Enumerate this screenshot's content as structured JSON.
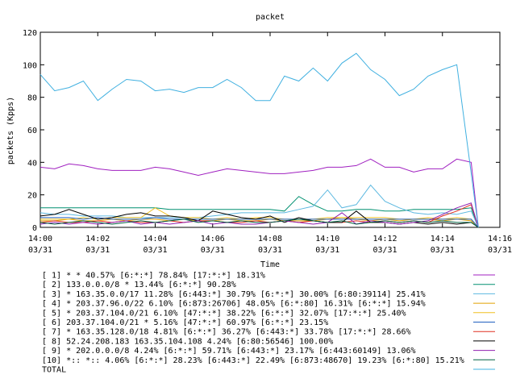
{
  "chart_data": {
    "type": "line",
    "title": "packet",
    "xlabel": "Time",
    "ylabel": "packets (Kpps)",
    "ylim": [
      0,
      120
    ],
    "yticks": [
      "0",
      "20",
      "40",
      "60",
      "80",
      "100",
      "120"
    ],
    "xlim": [
      "14:00",
      "14:16"
    ],
    "xticks": [
      {
        "time": "14:00",
        "date": "03/31"
      },
      {
        "time": "14:02",
        "date": "03/31"
      },
      {
        "time": "14:04",
        "date": "03/31"
      },
      {
        "time": "14:06",
        "date": "03/31"
      },
      {
        "time": "14:08",
        "date": "03/31"
      },
      {
        "time": "14:10",
        "date": "03/31"
      },
      {
        "time": "14:12",
        "date": "03/31"
      },
      {
        "time": "14:14",
        "date": "03/31"
      },
      {
        "time": "14:16",
        "date": "03/31"
      }
    ],
    "grid": false,
    "legend_position": "bottom",
    "x": [
      "14:00",
      "14:00:30",
      "14:01",
      "14:01:30",
      "14:02",
      "14:02:30",
      "14:03",
      "14:03:30",
      "14:04",
      "14:04:30",
      "14:05",
      "14:05:30",
      "14:06",
      "14:06:30",
      "14:07",
      "14:07:30",
      "14:08",
      "14:08:30",
      "14:09",
      "14:09:30",
      "14:10",
      "14:10:30",
      "14:11",
      "14:11:30",
      "14:12",
      "14:12:30",
      "14:13",
      "14:13:30",
      "14:14",
      "14:14:30",
      "14:15"
    ],
    "series": [
      {
        "name": "[ 1] * * 40.57%  [6:*:*] 78.84% [17:*:*] 18.31%",
        "color": "#a020c0",
        "values": [
          37,
          36,
          39,
          38,
          36,
          35,
          35,
          35,
          37,
          36,
          34,
          32,
          34,
          36,
          35,
          34,
          33,
          33,
          34,
          35,
          37,
          37,
          38,
          42,
          37,
          37,
          34,
          36,
          36,
          42,
          40
        ]
      },
      {
        "name": "[ 2] 133.0.0.0/8 * 13.44%  [6:*:*] 90.28%",
        "color": "#009070",
        "values": [
          12,
          12,
          12,
          12,
          12,
          12,
          12,
          12,
          12,
          11,
          11,
          11,
          11,
          11,
          11,
          11,
          11,
          10,
          19,
          14,
          10,
          10,
          11,
          11,
          10,
          10,
          11,
          11,
          11,
          11,
          12
        ]
      },
      {
        "name": "[ 3] * 163.35.0.0/17 11.28%  [6:443:*] 30.79% [6:*:*] 30.00% [6:80:39114] 25.41%",
        "color": "#5cb8e0",
        "values": [
          9,
          8,
          8,
          7,
          7,
          7,
          6,
          6,
          6,
          6,
          6,
          6,
          7,
          8,
          9,
          9,
          9,
          9,
          11,
          13,
          23,
          12,
          14,
          26,
          16,
          12,
          9,
          8,
          9,
          8,
          10
        ]
      },
      {
        "name": "[ 4] * 203.37.96.0/22 6.10%  [6:873:26706] 48.05% [6:*:80] 16.31% [6:*:*] 15.94%",
        "color": "#e0a000",
        "values": [
          4,
          4,
          5,
          4,
          4,
          5,
          4,
          5,
          5,
          4,
          5,
          4,
          4,
          5,
          4,
          4,
          5,
          4,
          4,
          4,
          5,
          6,
          5,
          4,
          5,
          4,
          5,
          5,
          4,
          5,
          4
        ]
      },
      {
        "name": "[ 5] * 203.37.104.0/21 6.10%  [47:*:*] 38.22% [6:*:*] 32.07% [17:*:*] 25.40%",
        "color": "#f0c020",
        "values": [
          5,
          5,
          5,
          6,
          5,
          6,
          6,
          6,
          12,
          7,
          6,
          6,
          5,
          6,
          5,
          6,
          6,
          5,
          5,
          5,
          6,
          6,
          6,
          6,
          6,
          5,
          5,
          6,
          5,
          6,
          5
        ]
      },
      {
        "name": "[ 6] 203.37.104.0/21 * 5.16%  [47:*:*] 60.97% [6:*:*] 23.15%",
        "color": "#2060c0",
        "values": [
          6,
          6,
          6,
          5,
          6,
          5,
          5,
          5,
          6,
          5,
          5,
          5,
          5,
          5,
          5,
          5,
          5,
          5,
          5,
          5,
          5,
          5,
          5,
          5,
          5,
          5,
          5,
          5,
          5,
          5,
          5
        ]
      },
      {
        "name": "[ 7] * 163.35.128.0/18 4.81%  [6:*:*] 36.27% [6:443:*] 33.78% [17:*:*] 28.66%",
        "color": "#e03020",
        "values": [
          3,
          4,
          3,
          3,
          4,
          3,
          4,
          3,
          3,
          4,
          3,
          4,
          4,
          3,
          3,
          4,
          3,
          4,
          3,
          4,
          3,
          3,
          4,
          3,
          4,
          3,
          4,
          3,
          7,
          10,
          14
        ]
      },
      {
        "name": "[ 8] 52.24.208.183 163.35.104.108 4.24%  [6:80:56546] 100.00%",
        "color": "#000000",
        "values": [
          7,
          8,
          11,
          8,
          5,
          6,
          8,
          9,
          7,
          7,
          6,
          4,
          10,
          8,
          6,
          5,
          7,
          3,
          6,
          4,
          3,
          3,
          10,
          3,
          3,
          2,
          3,
          2,
          3,
          2,
          3
        ]
      },
      {
        "name": "[ 9] * 202.0.0.0/8 4.24%  [6:*:*] 59.71% [6:443:*] 23.17% [6:443:60149] 13.06%",
        "color": "#9020b0",
        "values": [
          2,
          3,
          2,
          3,
          2,
          3,
          4,
          2,
          3,
          2,
          3,
          4,
          2,
          3,
          2,
          2,
          3,
          4,
          3,
          2,
          3,
          9,
          2,
          4,
          3,
          2,
          3,
          4,
          8,
          12,
          15
        ]
      },
      {
        "name": "[10] *:: *:: 4.06%  [6:*:*] 28.23% [6:443:*] 22.49% [6:873:48670] 19.23% [6:*:80] 15.21%",
        "color": "#006040",
        "values": [
          3,
          2,
          3,
          4,
          3,
          2,
          3,
          4,
          3,
          4,
          5,
          3,
          4,
          3,
          4,
          3,
          3,
          4,
          5,
          4,
          3,
          4,
          2,
          3,
          4,
          3,
          4,
          3,
          4,
          3,
          3
        ]
      },
      {
        "name": "TOTAL",
        "color": "#40b0e0",
        "values": [
          94,
          84,
          86,
          90,
          78,
          85,
          91,
          90,
          84,
          85,
          83,
          86,
          86,
          91,
          86,
          78,
          78,
          93,
          90,
          98,
          90,
          101,
          107,
          97,
          91,
          81,
          85,
          93,
          97,
          100,
          null
        ]
      }
    ]
  }
}
